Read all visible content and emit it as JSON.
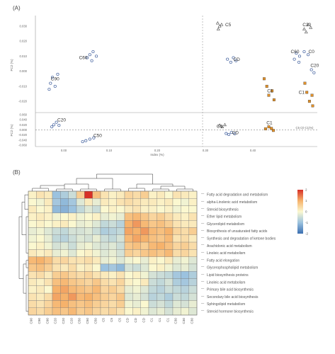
{
  "panel_labels": {
    "a": "(A)",
    "b": "(B)"
  },
  "chart_data": [
    {
      "type": "scatter",
      "title": "",
      "xlabel": "Index (%)",
      "ylabel_top": "PC2 (%)",
      "ylabel_bottom": "PC2 (%)",
      "xticks": [
        "0.00",
        "0.10",
        "0.20",
        "0.30",
        "0.40"
      ],
      "xlim": [
        0.045,
        0.475
      ],
      "top_yticks": [
        "0.030",
        "0.020",
        "0.010",
        "0.000",
        "-0.010",
        "-0.020"
      ],
      "top_ylim": [
        -0.027,
        0.037
      ],
      "bottom_yticks": [
        "0.060",
        "0.040",
        "0.020",
        "0.000",
        "-0.020",
        "-0.040",
        "-0.060"
      ],
      "bottom_ylim": [
        -0.065,
        0.065
      ],
      "reference_lines": {
        "vertical_x": 0.3,
        "horizontal_bottom_y": 0.0
      },
      "top_groups": [
        {
          "label": "C60",
          "color": "#3a5a9a",
          "marker": "circle",
          "label_at": [
            0.118,
            0.008
          ],
          "points": [
            [
              0.128,
              0.011
            ],
            [
              0.133,
              0.013
            ],
            [
              0.138,
              0.01
            ],
            [
              0.131,
              0.007
            ],
            [
              0.124,
              0.009
            ]
          ]
        },
        {
          "label": "C90",
          "color": "#3a5a9a",
          "marker": "circle",
          "label_at": [
            0.075,
            -0.006
          ],
          "points": [
            [
              0.068,
              -0.008
            ],
            [
              0.071,
              -0.004
            ],
            [
              0.075,
              -0.01
            ],
            [
              0.079,
              -0.002
            ],
            [
              0.066,
              -0.012
            ]
          ]
        },
        {
          "label": "C5",
          "color": "#444444",
          "marker": "triangle",
          "label_at": [
            0.339,
            0.03
          ],
          "points": [
            [
              0.323,
              0.032
            ],
            [
              0.326,
              0.03
            ],
            [
              0.324,
              0.028
            ],
            [
              0.329,
              0.031
            ]
          ]
        },
        {
          "label": "CD",
          "color": "#3a5a9a",
          "marker": "circle",
          "label_at": [
            0.352,
            0.007
          ],
          "points": [
            [
              0.338,
              0.008
            ],
            [
              0.343,
              0.006
            ],
            [
              0.347,
              0.009
            ],
            [
              0.351,
              0.007
            ]
          ]
        },
        {
          "label": "C30",
          "color": "#444444",
          "marker": "triangle",
          "label_at": [
            0.459,
            0.03
          ],
          "points": [
            [
              0.455,
              0.028
            ],
            [
              0.461,
              0.031
            ],
            [
              0.465,
              0.029
            ],
            [
              0.458,
              0.026
            ]
          ]
        },
        {
          "label": "C0",
          "color": "#3a5a9a",
          "marker": "circle",
          "label_at": [
            0.466,
            0.012
          ],
          "points": [
            [
              0.443,
              0.012
            ],
            [
              0.448,
              0.01
            ],
            [
              0.455,
              0.013
            ],
            [
              0.461,
              0.011
            ]
          ]
        },
        {
          "label": "C60",
          "color": "#3a5a9a",
          "marker": "circle",
          "label_at": [
            0.441,
            0.012
          ],
          "points": [
            [
              0.44,
              0.008
            ],
            [
              0.447,
              0.006
            ]
          ]
        },
        {
          "label": "C20",
          "color": "#3a5a9a",
          "marker": "circle",
          "label_at": [
            0.471,
            0.003
          ],
          "points": [
            [
              0.466,
              0.001
            ],
            [
              0.47,
              -0.001
            ]
          ]
        },
        {
          "label": "C1",
          "color": "#e0902a",
          "marker": "square",
          "label_at": [
            0.403,
            -0.014
          ],
          "points": [
            [
              0.394,
              -0.005
            ],
            [
              0.401,
              -0.016
            ],
            [
              0.406,
              -0.013
            ],
            [
              0.409,
              -0.019
            ],
            [
              0.398,
              -0.01
            ]
          ]
        },
        {
          "label": "C1",
          "color": "#e0902a",
          "marker": "square",
          "label_at": [
            0.451,
            -0.015
          ],
          "points": [
            [
              0.456,
              -0.008
            ],
            [
              0.459,
              -0.014
            ],
            [
              0.463,
              -0.02
            ],
            [
              0.467,
              -0.016
            ],
            [
              0.468,
              -0.023
            ]
          ]
        }
      ],
      "bottom_groups": [
        {
          "label": "C20",
          "color": "#3a5a9a",
          "marker": "circle",
          "label_at": [
            0.085,
            0.033
          ],
          "points": [
            [
              0.073,
              0.02
            ],
            [
              0.077,
              0.03
            ],
            [
              0.081,
              0.018
            ],
            [
              0.07,
              0.012
            ]
          ]
        },
        {
          "label": "C50",
          "color": "#3a5a9a",
          "marker": "circle",
          "label_at": [
            0.14,
            -0.028
          ],
          "points": [
            [
              0.122,
              -0.042
            ],
            [
              0.128,
              -0.036
            ],
            [
              0.134,
              -0.031
            ],
            [
              0.117,
              -0.046
            ]
          ]
        },
        {
          "label": "C5",
          "color": "#444444",
          "marker": "triangle",
          "label_at": [
            0.326,
            0.008
          ],
          "points": [
            [
              0.326,
              0.018
            ],
            [
              0.33,
              0.012
            ],
            [
              0.334,
              0.02
            ]
          ]
        },
        {
          "label": "CD",
          "color": "#3a5a9a",
          "marker": "circle",
          "label_at": [
            0.35,
            -0.016
          ],
          "points": [
            [
              0.336,
              -0.014
            ],
            [
              0.34,
              -0.018
            ],
            [
              0.344,
              -0.01
            ],
            [
              0.349,
              -0.015
            ]
          ]
        },
        {
          "label": "C1",
          "color": "#e0902a",
          "marker": "square",
          "label_at": [
            0.402,
            0.022
          ],
          "points": [
            [
              0.396,
              0.004
            ],
            [
              0.401,
              0.012
            ],
            [
              0.405,
              0.006
            ],
            [
              0.408,
              -0.002
            ]
          ]
        }
      ],
      "bottom_legend": "C5 C0 C1(%)"
    },
    {
      "type": "heatmap",
      "title": "",
      "colorscale": {
        "min": -2,
        "max": 2,
        "ticks": [
          "2",
          "1",
          "0",
          "-1",
          "-2"
        ],
        "colors": [
          "#3b6fb0",
          "#9bc2df",
          "#fbf8d0",
          "#f6b26b",
          "#d73027"
        ]
      },
      "rows": [
        "Fatty acid degradation and metabolism",
        "alpha-Linolenic acid metabolism",
        "Steroid biosynthesis",
        "Ether lipid metabolism",
        "Glycerolipid metabolism",
        "Biosynthesis of unsaturated fatty acids",
        "Synthesis and degradation of ketone bodies",
        "Arachidonic acid metabolism",
        "Linoleic acid metabolism",
        "Fatty acid elongation",
        "Glycerophospholipid metabolism",
        "Lipid biosynthesis proteins",
        "Linoleic acid metabolism",
        "Primary bile acid biosynthesis",
        "Secondary bile acid biosynthesis",
        "Sphingolipid metabolism",
        "Steroid hormone biosynthesis"
      ],
      "columns": [
        "C90",
        "C90",
        "C90",
        "C20",
        "C20",
        "C20",
        "C50",
        "C50",
        "C50",
        "C5",
        "C5",
        "C5",
        "CD",
        "CD",
        "CD",
        "C1",
        "C1",
        "C1",
        "C30",
        "C30",
        "C30"
      ],
      "values": [
        [
          0.1,
          0.3,
          0.2,
          -1.0,
          -0.8,
          -0.5,
          0.6,
          2.0,
          0.8,
          0.3,
          0.1,
          0.2,
          0.5,
          0.4,
          0.6,
          0.1,
          0.2,
          0.0,
          0.3,
          0.2,
          0.1
        ],
        [
          0.0,
          -0.1,
          0.2,
          -0.9,
          -1.1,
          -0.9,
          -0.3,
          0.2,
          -0.2,
          0.2,
          0.1,
          0.3,
          0.4,
          0.3,
          0.2,
          0.2,
          0.1,
          0.2,
          0.0,
          -0.1,
          0.1
        ],
        [
          0.2,
          0.0,
          0.1,
          -1.1,
          -1.2,
          -1.0,
          -0.6,
          -0.3,
          -0.5,
          0.0,
          0.1,
          0.0,
          0.2,
          0.3,
          0.1,
          0.1,
          0.0,
          0.1,
          -0.1,
          0.0,
          0.0
        ],
        [
          0.1,
          0.2,
          0.1,
          -0.1,
          0.0,
          0.1,
          -0.1,
          0.0,
          0.1,
          -0.2,
          -0.1,
          -0.2,
          0.8,
          0.9,
          0.7,
          0.5,
          0.6,
          0.4,
          0.2,
          0.1,
          0.3
        ],
        [
          0.0,
          0.1,
          0.0,
          0.1,
          0.2,
          0.0,
          -0.2,
          -0.1,
          -0.3,
          -0.6,
          -0.5,
          -0.7,
          1.0,
          1.2,
          0.9,
          0.7,
          0.8,
          0.6,
          0.3,
          0.2,
          0.2
        ],
        [
          -0.2,
          -0.1,
          -0.3,
          -0.5,
          -0.6,
          -0.4,
          -0.4,
          -0.3,
          -0.5,
          -0.8,
          -0.7,
          -0.6,
          1.1,
          1.0,
          1.2,
          0.9,
          0.8,
          1.0,
          0.5,
          0.4,
          0.6
        ],
        [
          -0.1,
          0.0,
          -0.2,
          -0.6,
          -0.7,
          -0.5,
          -0.3,
          -0.4,
          -0.2,
          -0.5,
          -0.6,
          -0.4,
          0.9,
          1.1,
          1.0,
          0.8,
          0.7,
          0.9,
          0.3,
          0.4,
          0.2
        ],
        [
          0.0,
          0.1,
          -0.1,
          -0.4,
          -0.3,
          -0.5,
          -0.2,
          -0.1,
          -0.3,
          -0.4,
          -0.3,
          -0.5,
          0.7,
          0.8,
          0.6,
          0.9,
          1.0,
          0.8,
          0.5,
          0.6,
          0.4
        ],
        [
          0.2,
          0.1,
          0.2,
          -0.2,
          -0.1,
          -0.3,
          0.0,
          0.1,
          -0.1,
          -0.3,
          -0.2,
          -0.4,
          0.6,
          0.5,
          0.7,
          0.8,
          0.7,
          0.9,
          0.4,
          0.5,
          0.3
        ],
        [
          0.9,
          1.0,
          0.8,
          0.4,
          0.5,
          0.3,
          0.3,
          0.4,
          0.2,
          -0.2,
          -0.1,
          -0.3,
          -0.1,
          0.0,
          -0.2,
          0.1,
          0.0,
          0.2,
          -0.2,
          -0.1,
          -0.3
        ],
        [
          0.7,
          0.8,
          0.6,
          0.3,
          0.2,
          0.4,
          0.1,
          0.2,
          0.0,
          -1.0,
          -0.9,
          -1.1,
          -0.4,
          -0.5,
          -0.3,
          0.0,
          0.1,
          -0.1,
          -0.3,
          -0.2,
          -0.4
        ],
        [
          0.3,
          0.4,
          0.2,
          0.6,
          0.7,
          0.5,
          0.4,
          0.5,
          0.3,
          0.2,
          0.1,
          0.3,
          0.0,
          0.1,
          -0.1,
          -0.4,
          -0.5,
          -0.6,
          -0.9,
          -1.0,
          -0.8
        ],
        [
          0.2,
          0.1,
          0.3,
          0.8,
          0.9,
          0.7,
          0.6,
          0.5,
          0.7,
          0.4,
          0.3,
          0.5,
          0.1,
          0.0,
          0.2,
          -0.5,
          -0.6,
          -0.4,
          -0.8,
          -0.9,
          -0.7
        ],
        [
          0.1,
          0.2,
          0.0,
          1.0,
          1.1,
          0.9,
          0.8,
          0.7,
          0.9,
          0.5,
          0.6,
          0.4,
          -0.2,
          -0.1,
          -0.3,
          -0.6,
          -0.7,
          -0.5,
          -0.6,
          -0.7,
          -0.5
        ],
        [
          0.3,
          0.2,
          0.4,
          1.1,
          1.0,
          1.2,
          0.9,
          1.0,
          0.8,
          0.6,
          0.5,
          0.7,
          -0.3,
          -0.2,
          -0.4,
          -0.7,
          -0.6,
          -0.8,
          -0.5,
          -0.6,
          -0.4
        ],
        [
          0.4,
          0.3,
          0.5,
          0.9,
          1.0,
          0.8,
          0.7,
          0.8,
          0.6,
          0.5,
          0.4,
          0.6,
          -0.1,
          -0.2,
          0.0,
          -0.5,
          -0.4,
          -0.6,
          -0.3,
          -0.4,
          -0.2
        ],
        [
          0.5,
          0.4,
          0.6,
          0.8,
          0.7,
          0.9,
          0.6,
          0.7,
          0.5,
          0.4,
          0.5,
          0.3,
          0.0,
          0.1,
          -0.1,
          -0.3,
          -0.2,
          -0.4,
          -0.2,
          -0.1,
          -0.3
        ]
      ]
    }
  ]
}
